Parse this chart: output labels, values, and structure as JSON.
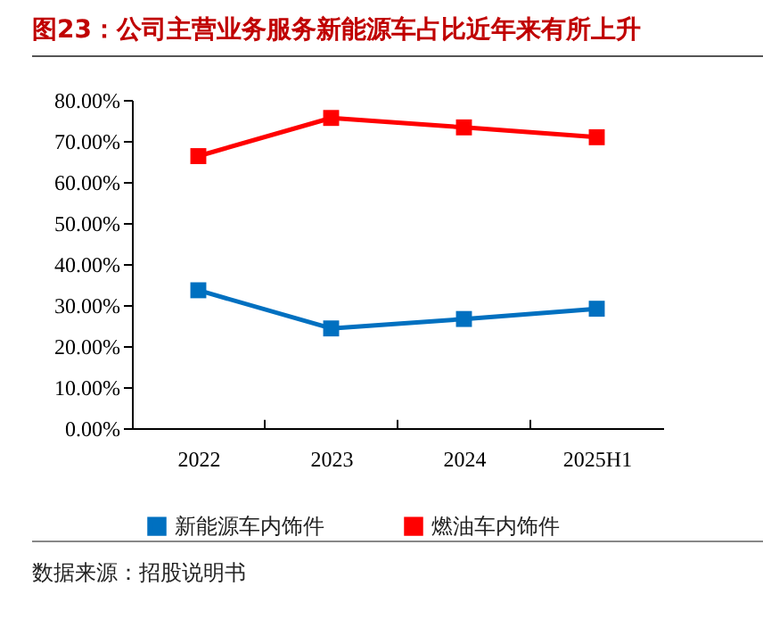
{
  "chart_data": {
    "type": "line",
    "title": "图23：公司主营业务服务新能源车占比近年来有所上升",
    "categories": [
      "2022",
      "2023",
      "2024",
      "2025H1"
    ],
    "series": [
      {
        "name": "新能源车内饰件",
        "color": "#0070c0",
        "values": [
          33.6,
          24.3,
          26.6,
          29.1
        ]
      },
      {
        "name": "燃油车内饰件",
        "color": "#ff0000",
        "values": [
          66.3,
          75.6,
          73.3,
          70.9
        ]
      }
    ],
    "ylim": [
      0,
      80
    ],
    "yticks": [
      {
        "value": 0,
        "label": "0.00%"
      },
      {
        "value": 10,
        "label": "10.00%"
      },
      {
        "value": 20,
        "label": "20.00%"
      },
      {
        "value": 30,
        "label": "30.00%"
      },
      {
        "value": 40,
        "label": "40.00%"
      },
      {
        "value": 50,
        "label": "50.00%"
      },
      {
        "value": 60,
        "label": "60.00%"
      },
      {
        "value": 70,
        "label": "70.00%"
      },
      {
        "value": 80,
        "label": "80.00%"
      }
    ],
    "grid": false,
    "legend": "bottom",
    "marker": "square",
    "line_style": "solid",
    "annotations": [
      "数据来源：招股说明书"
    ]
  }
}
